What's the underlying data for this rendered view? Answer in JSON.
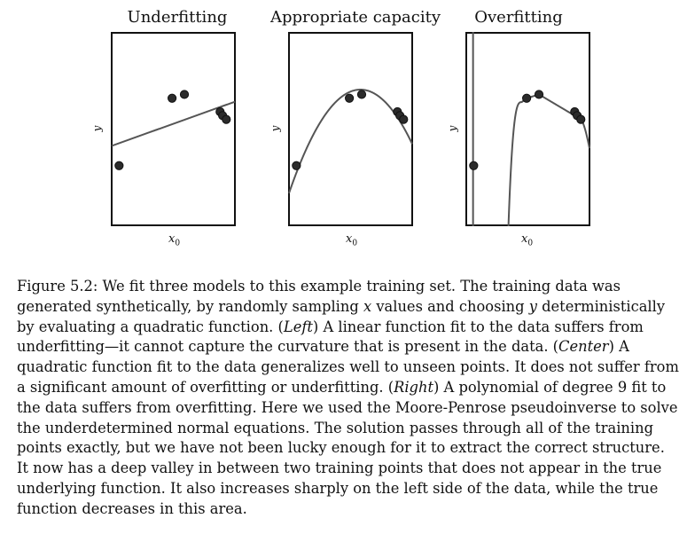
{
  "panels": [
    {
      "title": "Underfitting",
      "xlabel": "x",
      "xlabel_sub": "0",
      "ylabel": "y"
    },
    {
      "title": "Appropriate capacity",
      "xlabel": "x",
      "xlabel_sub": "0",
      "ylabel": "y"
    },
    {
      "title": "Overfitting",
      "xlabel": "x",
      "xlabel_sub": "0",
      "ylabel": "y"
    }
  ],
  "chart_data": [
    {
      "type": "scatter",
      "title": "Underfitting",
      "xlabel": "x0",
      "ylabel": "y",
      "points": [
        [
          0.06,
          0.31
        ],
        [
          0.49,
          0.66
        ],
        [
          0.59,
          0.68
        ],
        [
          0.88,
          0.59
        ],
        [
          0.9,
          0.57
        ],
        [
          0.93,
          0.55
        ]
      ],
      "fit": "linear",
      "xlim": [
        0,
        1
      ],
      "ylim": [
        0,
        1
      ]
    },
    {
      "type": "scatter",
      "title": "Appropriate capacity",
      "xlabel": "x0",
      "ylabel": "y",
      "points": [
        [
          0.06,
          0.31
        ],
        [
          0.49,
          0.66
        ],
        [
          0.59,
          0.68
        ],
        [
          0.88,
          0.59
        ],
        [
          0.9,
          0.57
        ],
        [
          0.93,
          0.55
        ]
      ],
      "fit": "quadratic",
      "xlim": [
        0,
        1
      ],
      "ylim": [
        0,
        1
      ]
    },
    {
      "type": "scatter",
      "title": "Overfitting",
      "xlabel": "x0",
      "ylabel": "y",
      "points": [
        [
          0.06,
          0.31
        ],
        [
          0.49,
          0.66
        ],
        [
          0.59,
          0.68
        ],
        [
          0.88,
          0.59
        ],
        [
          0.9,
          0.57
        ],
        [
          0.93,
          0.55
        ]
      ],
      "fit": "polynomial degree 9",
      "xlim": [
        0,
        1
      ],
      "ylim": [
        0,
        1
      ]
    }
  ],
  "caption": {
    "lines": [
      [
        {
          "t": "Figure 5.2:  We fit three models to this example training set.  The training data was"
        }
      ],
      [
        {
          "t": "generated synthetically, by randomly sampling "
        },
        {
          "t": "x",
          "i": true
        },
        {
          "t": " values and choosing "
        },
        {
          "t": "y",
          "i": true
        },
        {
          "t": " deterministically"
        }
      ],
      [
        {
          "t": "by evaluating a quadratic function. ("
        },
        {
          "t": "Left",
          "i": true
        },
        {
          "t": ") A linear function fit to the data suffers from"
        }
      ],
      [
        {
          "t": "underfitting—it cannot capture the curvature that is present in the data. ("
        },
        {
          "t": "Center",
          "i": true
        },
        {
          "t": ") A"
        }
      ],
      [
        {
          "t": "quadratic function fit to the data generalizes well to unseen points. It does not suffer from"
        }
      ],
      [
        {
          "t": "a significant amount of overfitting or underfitting. ("
        },
        {
          "t": "Right",
          "i": true
        },
        {
          "t": ") A polynomial of degree 9 fit to"
        }
      ],
      [
        {
          "t": "the data suffers from overfitting. Here we used the Moore-Penrose pseudoinverse to solve"
        }
      ],
      [
        {
          "t": "the underdetermined normal equations. The solution passes through all of the training"
        }
      ],
      [
        {
          "t": "points exactly, but we have not been lucky enough for it to extract the correct structure."
        }
      ],
      [
        {
          "t": "It now has a deep valley in between two training points that does not appear in the true"
        }
      ],
      [
        {
          "t": "underlying function. It also increases sharply on the left side of the data, while the true"
        }
      ],
      [
        {
          "t": "function decreases in this area."
        }
      ]
    ]
  }
}
